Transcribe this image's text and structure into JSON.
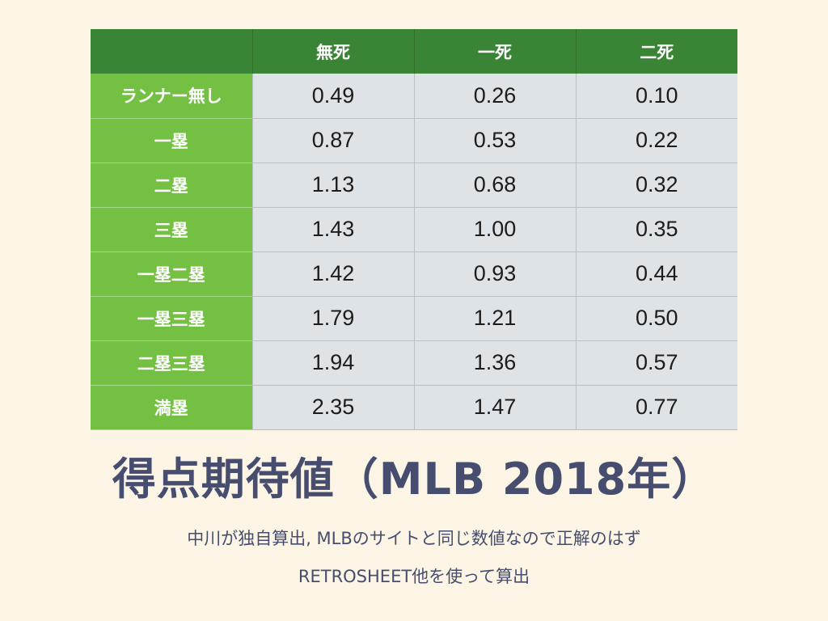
{
  "table": {
    "header": [
      "",
      "無死",
      "一死",
      "二死"
    ],
    "rows": [
      {
        "label": "ランナー無し",
        "values": [
          "0.49",
          "0.26",
          "0.10"
        ]
      },
      {
        "label": "一塁",
        "values": [
          "0.87",
          "0.53",
          "0.22"
        ]
      },
      {
        "label": "二塁",
        "values": [
          "1.13",
          "0.68",
          "0.32"
        ]
      },
      {
        "label": "三塁",
        "values": [
          "1.43",
          "1.00",
          "0.35"
        ]
      },
      {
        "label": "一塁二塁",
        "values": [
          "1.42",
          "0.93",
          "0.44"
        ]
      },
      {
        "label": "一塁三塁",
        "values": [
          "1.79",
          "1.21",
          "0.50"
        ]
      },
      {
        "label": "二塁三塁",
        "values": [
          "1.94",
          "1.36",
          "0.57"
        ]
      },
      {
        "label": "満塁",
        "values": [
          "2.35",
          "1.47",
          "0.77"
        ]
      }
    ]
  },
  "title": "得点期待値（MLB 2018年）",
  "notes": [
    "中川が独自算出, MLBのサイトと同じ数値なので正解のはず",
    "RETROSHEET他を使って算出"
  ],
  "colors": {
    "background": "#fcf5e5",
    "header": "#3a8535",
    "row_label": "#74c043",
    "cell": "#dde3e7",
    "text": "#464d6e"
  }
}
